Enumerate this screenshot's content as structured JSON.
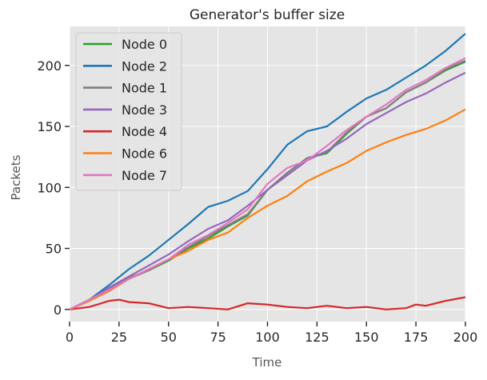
{
  "chart_data": {
    "type": "line",
    "title": "Generator's buffer size",
    "xlabel": "Time",
    "ylabel": "Packets",
    "xlim": [
      0,
      200
    ],
    "ylim": [
      -10,
      232
    ],
    "xticks": [
      0,
      25,
      50,
      75,
      100,
      125,
      150,
      175,
      200
    ],
    "yticks": [
      0,
      50,
      100,
      150,
      200
    ],
    "grid": true,
    "legend_position": "top-left",
    "series": [
      {
        "name": "Node 0",
        "color": "#2ca02c",
        "x": [
          0,
          10,
          20,
          30,
          40,
          50,
          60,
          70,
          80,
          90,
          100,
          110,
          120,
          130,
          140,
          150,
          160,
          170,
          180,
          190,
          200
        ],
        "y": [
          0,
          8,
          17,
          26,
          32,
          40,
          50,
          58,
          68,
          77,
          98,
          112,
          124,
          128,
          144,
          158,
          165,
          178,
          186,
          196,
          203
        ]
      },
      {
        "name": "Node 2",
        "color": "#1f77b4",
        "x": [
          0,
          10,
          20,
          30,
          40,
          50,
          60,
          70,
          80,
          90,
          100,
          110,
          120,
          130,
          140,
          150,
          160,
          170,
          180,
          190,
          200
        ],
        "y": [
          0,
          8,
          20,
          33,
          44,
          57,
          70,
          84,
          89,
          97,
          115,
          135,
          146,
          150,
          162,
          173,
          180,
          190,
          200,
          212,
          226
        ]
      },
      {
        "name": "Node 1",
        "color": "#7f7f7f",
        "x": [
          0,
          10,
          20,
          30,
          40,
          50,
          60,
          70,
          80,
          90,
          100,
          110,
          120,
          130,
          140,
          150,
          160,
          170,
          180,
          190,
          200
        ],
        "y": [
          0,
          8,
          17,
          25,
          32,
          41,
          51,
          60,
          69,
          78,
          98,
          112,
          124,
          129,
          145,
          158,
          165,
          178,
          186,
          197,
          204
        ]
      },
      {
        "name": "Node 3",
        "color": "#9467bd",
        "x": [
          0,
          10,
          20,
          30,
          40,
          50,
          60,
          70,
          80,
          90,
          100,
          110,
          120,
          130,
          140,
          150,
          160,
          170,
          180,
          190,
          200
        ],
        "y": [
          0,
          7,
          18,
          27,
          36,
          45,
          56,
          66,
          73,
          85,
          98,
          110,
          122,
          130,
          140,
          152,
          161,
          170,
          177,
          186,
          194
        ]
      },
      {
        "name": "Node 4",
        "color": "#d62728",
        "x": [
          0,
          10,
          20,
          25,
          30,
          40,
          50,
          60,
          70,
          80,
          90,
          100,
          110,
          120,
          130,
          140,
          150,
          160,
          170,
          175,
          180,
          190,
          200
        ],
        "y": [
          0,
          2,
          7,
          8,
          6,
          5,
          1,
          2,
          1,
          0,
          5,
          4,
          2,
          1,
          3,
          1,
          2,
          0,
          1,
          4,
          3,
          7,
          10
        ]
      },
      {
        "name": "Node 6",
        "color": "#ff7f0e",
        "x": [
          0,
          10,
          20,
          30,
          40,
          50,
          60,
          70,
          80,
          90,
          100,
          110,
          120,
          130,
          140,
          150,
          160,
          170,
          180,
          190,
          200
        ],
        "y": [
          0,
          7,
          15,
          25,
          33,
          41,
          48,
          57,
          63,
          75,
          85,
          93,
          105,
          113,
          120,
          130,
          137,
          143,
          148,
          155,
          164
        ]
      },
      {
        "name": "Node 7",
        "color": "#e377c2",
        "x": [
          0,
          10,
          20,
          30,
          40,
          50,
          60,
          70,
          80,
          90,
          100,
          110,
          120,
          130,
          140,
          150,
          160,
          170,
          180,
          190,
          200
        ],
        "y": [
          0,
          8,
          16,
          25,
          33,
          41,
          53,
          61,
          71,
          82,
          103,
          116,
          122,
          134,
          147,
          158,
          168,
          180,
          188,
          198,
          206
        ]
      }
    ]
  }
}
